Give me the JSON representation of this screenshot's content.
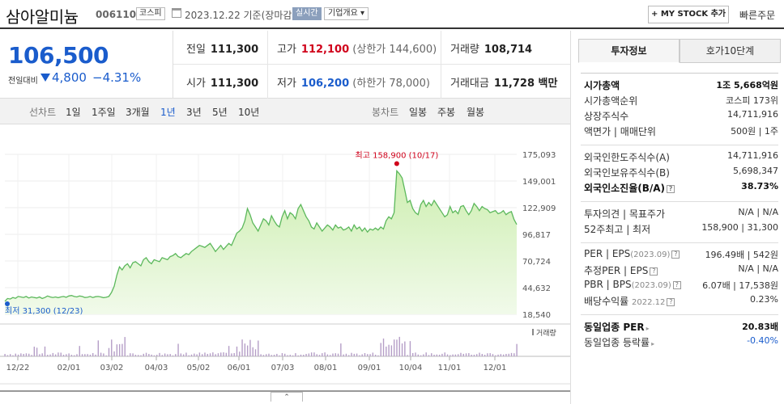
{
  "header": {
    "stock_name": "삼아알미늄",
    "stock_code": "006110",
    "market_badge": "코스피",
    "date_basis": "2023.12.22  기준(장마감)",
    "realtime_badge": "실시간",
    "company_info_label": "기업개요 ▾",
    "mystock_button": "+ MY STOCK 추가",
    "quick_order": "빠른주문"
  },
  "price": {
    "current": "106,500",
    "change_label": "전일대비",
    "change": "4,800",
    "change_pct": "−4.31%"
  },
  "stats": {
    "prev_close_label": "전일",
    "prev_close": "111,300",
    "high_label": "고가",
    "high": "112,100",
    "upper_limit": "(상한가 144,600)",
    "volume_label": "거래량",
    "volume": "108,714",
    "open_label": "시가",
    "open": "111,300",
    "low_label": "저가",
    "low": "106,200",
    "lower_limit": "(하한가 78,000)",
    "value_label": "거래대금",
    "value": "11,728 백만"
  },
  "period_tabs": {
    "line_chart": "선차트",
    "d1": "1일",
    "w1": "1주일",
    "m3": "3개월",
    "y1": "1년",
    "y3": "3년",
    "y5": "5년",
    "y10": "10년",
    "candle_chart": "봉차트",
    "daily": "일봉",
    "weekly": "주봉",
    "monthly": "월봉"
  },
  "chart_data": {
    "type": "area",
    "period": "1년",
    "y_ticks": [
      "175,093",
      "149,001",
      "122,909",
      "96,817",
      "70,724",
      "44,632",
      "18,540"
    ],
    "ylim": [
      18540,
      175093
    ],
    "x_ticks": [
      "12/22",
      "02/01",
      "03/02",
      "04/03",
      "05/02",
      "06/01",
      "07/03",
      "08/01",
      "09/01",
      "10/04",
      "11/01",
      "12/01"
    ],
    "annotation_high": "최고 158,900 (10/17)",
    "annotation_low": "최저 31,300 (12/23)",
    "high": 158900,
    "low": 31300,
    "volume_label": "거래량",
    "color_line": "#5cb85c",
    "color_fill": "#cdeeb0",
    "color_high_marker": "#d0021b",
    "color_low_marker": "#1a5ccc",
    "series": [
      {
        "values": [
          31300,
          34000,
          33500,
          35000,
          34200,
          36000,
          35500,
          35000,
          36000,
          34500,
          35500,
          35000,
          34500,
          35500,
          34000,
          35000,
          36500,
          35500,
          35000,
          35500,
          34800,
          35500,
          36000,
          35200,
          36500,
          37000,
          36000,
          35500,
          36500,
          36000,
          35000,
          35200,
          36000,
          35000,
          35800,
          36000,
          35500,
          34800,
          35200,
          36000,
          40000,
          46000,
          57000,
          65000,
          62000,
          66000,
          68000,
          64000,
          69000,
          70000,
          68000,
          66000,
          72000,
          74000,
          70000,
          68000,
          72000,
          71000,
          70000,
          74000,
          73000,
          72000,
          75000,
          76000,
          78000,
          75000,
          74000,
          76000,
          78000,
          77000,
          80000,
          82000,
          84000,
          86000,
          85000,
          84000,
          86000,
          88000,
          84000,
          80000,
          83000,
          86000,
          82000,
          85000,
          88000,
          86000,
          92000,
          98000,
          100000,
          103000,
          110000,
          122000,
          116000,
          108000,
          104000,
          100000,
          106000,
          112000,
          110000,
          106000,
          115000,
          110000,
          106000,
          104000,
          114000,
          120000,
          112000,
          118000,
          116000,
          112000,
          122000,
          126000,
          120000,
          114000,
          110000,
          104000,
          102000,
          108000,
          104000,
          100000,
          103000,
          106000,
          104000,
          101000,
          106000,
          103000,
          104000,
          101000,
          102000,
          104000,
          100000,
          106000,
          102000,
          104000,
          100000,
          103000,
          99000,
          102000,
          101000,
          103000,
          101000,
          104000,
          102000,
          110000,
          114000,
          112000,
          118000,
          158900,
          156000,
          152000,
          140000,
          128000,
          130000,
          122000,
          118000,
          116000,
          126000,
          130000,
          124000,
          128000,
          125000,
          130000,
          126000,
          122000,
          118000,
          114000,
          116000,
          124000,
          118000,
          120000,
          117000,
          124000,
          125000,
          120000,
          116000,
          120000,
          127000,
          124000,
          120000,
          124000,
          122000,
          121000,
          118000,
          119000,
          120000,
          117000,
          118000,
          120000,
          116000,
          118000,
          119000,
          111300,
          106500
        ]
      }
    ]
  },
  "side": {
    "tab_invest": "투자정보",
    "tab_hoga": "호가10단계",
    "market_cap_label": "시가총액",
    "market_cap": "1조 5,668억원",
    "market_cap_rank_label": "시가총액순위",
    "market_cap_rank": "코스피 173위",
    "shares_label": "상장주식수",
    "shares": "14,711,916",
    "face_label": "액면가 | 매매단위",
    "face": "500원  |  1주",
    "foreign_limit_label": "외국인한도주식수(A)",
    "foreign_limit": "14,711,916",
    "foreign_hold_label": "외국인보유주식수(B)",
    "foreign_hold": "5,698,347",
    "foreign_ratio_label": "외국인소진율(B/A)",
    "foreign_ratio": "38.73%",
    "opinion_label": "투자의견  |  목표주가",
    "opinion": "N/A  |  N/A",
    "range52_label": "52주최고  |  최저",
    "range52": "158,900  |  31,300",
    "per_label": "PER  |  EPS",
    "per_period": "(2023.09)",
    "per": "196.49배  |  542원",
    "est_per_label": "추정PER  |  EPS",
    "est_per": "N/A  |  N/A",
    "pbr_label": "PBR  |  BPS",
    "pbr_period": "(2023.09)",
    "pbr": "6.07배  |  17,538원",
    "div_label": "배당수익률",
    "div_period": "2022.12",
    "div": "0.23%",
    "sector_per_label": "동일업종 PER",
    "sector_per": "20.83배",
    "sector_chg_label": "동일업종 등락률",
    "sector_chg": "-0.40%"
  }
}
